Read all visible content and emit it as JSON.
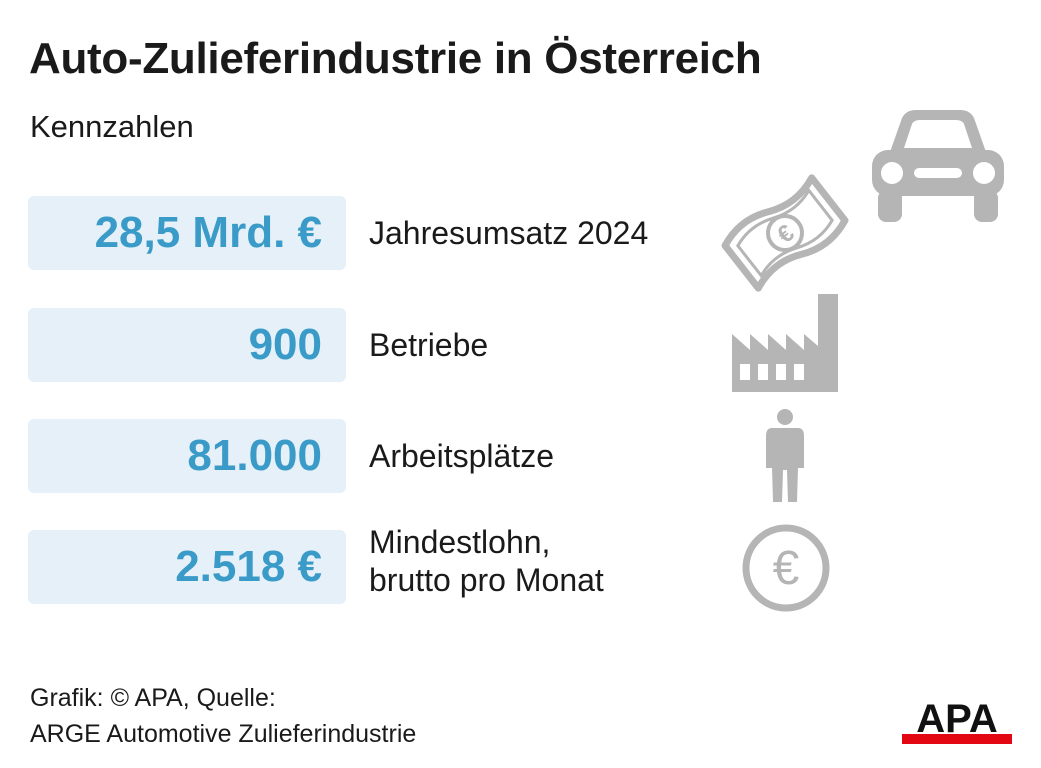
{
  "header": {
    "title": "Auto-Zulieferindustrie in Österreich",
    "subtitle": "Kennzahlen"
  },
  "stats": [
    {
      "value": "28,5 Mrd. €",
      "label_lines": [
        "Jahresumsatz 2024"
      ],
      "icon": "banknote-euro-icon"
    },
    {
      "value": "900",
      "label_lines": [
        "Betriebe"
      ],
      "icon": "factory-icon"
    },
    {
      "value": "81.000",
      "label_lines": [
        "Arbeitsplätze"
      ],
      "icon": "person-icon"
    },
    {
      "value": "2.518 €",
      "label_lines": [
        "Mindestlohn,",
        "brutto pro Monat"
      ],
      "icon": "euro-coin-icon"
    }
  ],
  "decor": {
    "top_icon": "car-icon"
  },
  "footer": {
    "line1": "Grafik: © APA, Quelle:",
    "line2": "ARGE Automotive Zulieferindustrie"
  },
  "logo": {
    "text": "APA"
  },
  "colors": {
    "value_text": "#3a9bc8",
    "value_box_bg": "#e5f0f8",
    "icon_gray": "#b5b5b5",
    "logo_red": "#e30613",
    "text": "#1a1a1a"
  }
}
